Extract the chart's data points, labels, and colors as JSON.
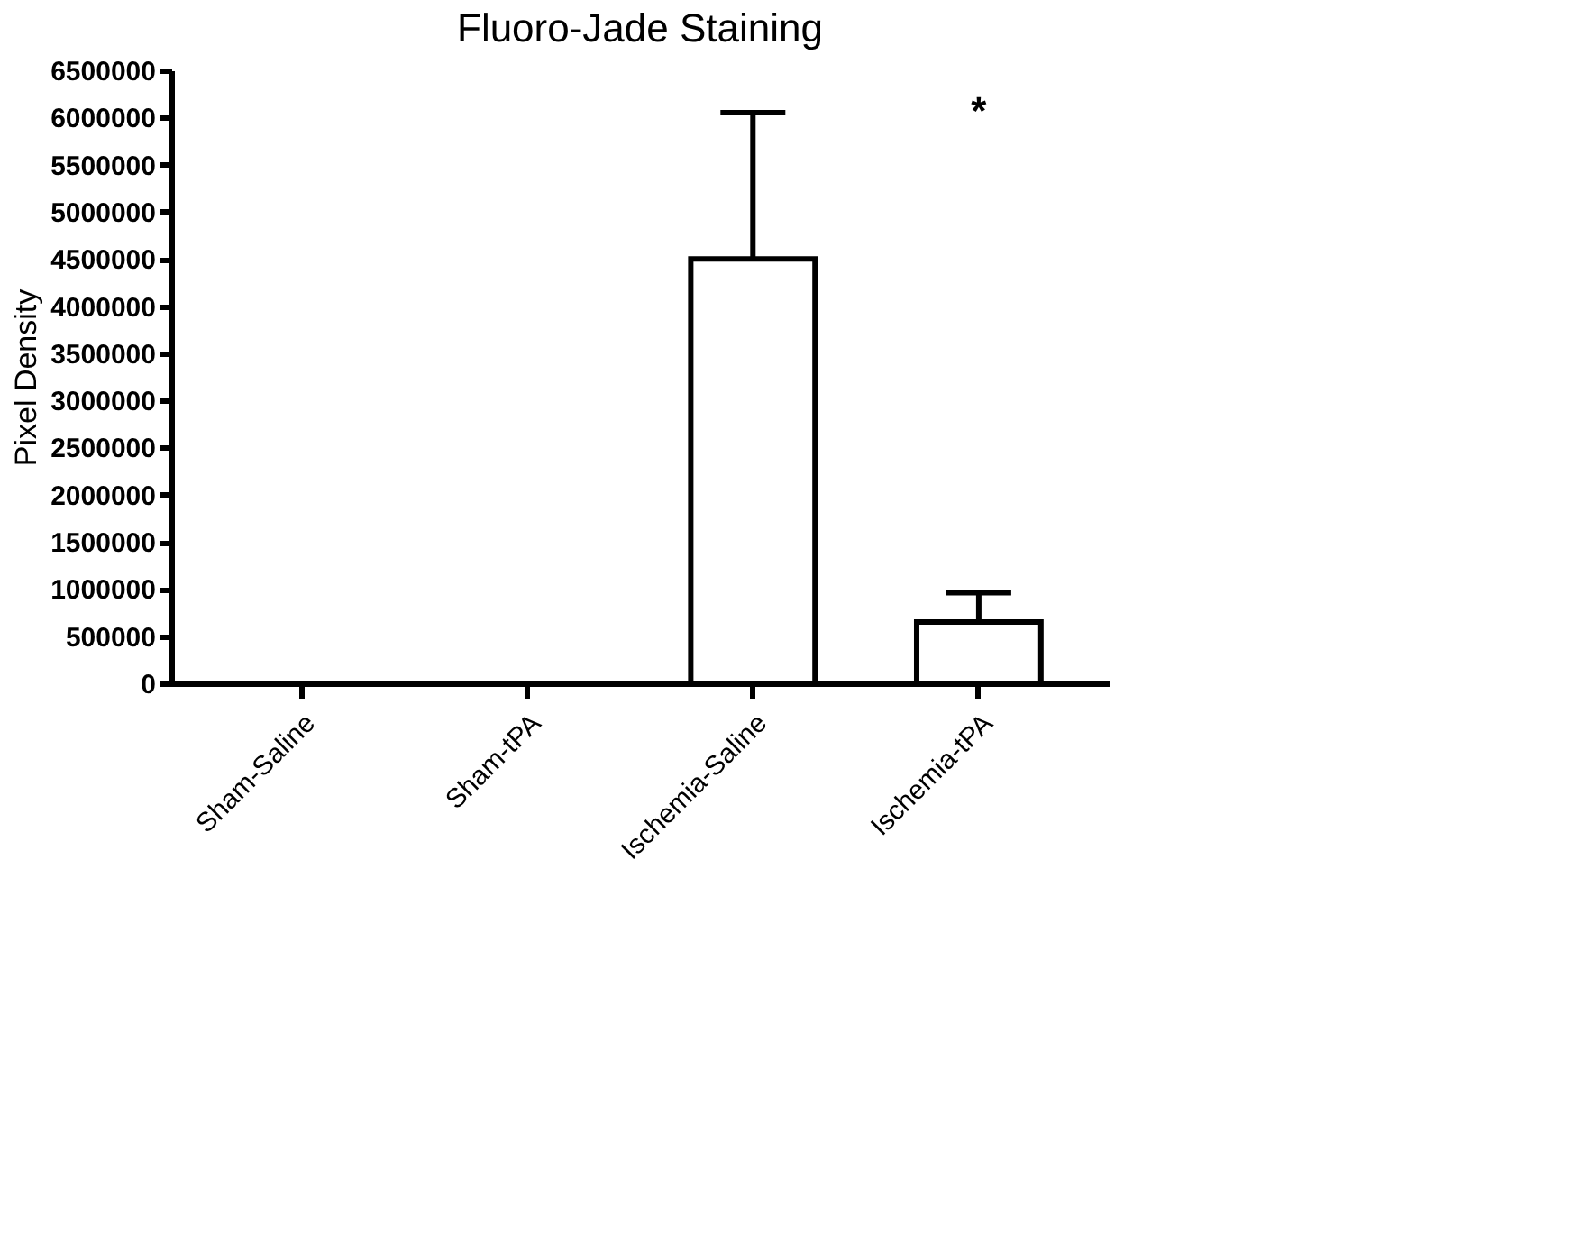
{
  "chart_data": {
    "type": "bar",
    "title": "Fluoro-Jade Staining",
    "ylabel": "Pixel Density",
    "categories": [
      "Sham-Saline",
      "Sham-tPA",
      "Ischemia-Saline",
      "Ischemia-tPA"
    ],
    "values": [
      0,
      0,
      4500000,
      650000
    ],
    "errors": [
      null,
      null,
      [
        4500000,
        6050000
      ],
      [
        650000,
        960000
      ]
    ],
    "color": "#ffffff",
    "ylim": [
      0,
      6500000
    ],
    "yticks": [
      0,
      500000,
      1000000,
      1500000,
      2000000,
      2500000,
      3000000,
      3500000,
      4000000,
      4500000,
      5000000,
      5500000,
      6000000,
      6500000
    ],
    "annotations": [
      "*"
    ],
    "grid": false
  }
}
